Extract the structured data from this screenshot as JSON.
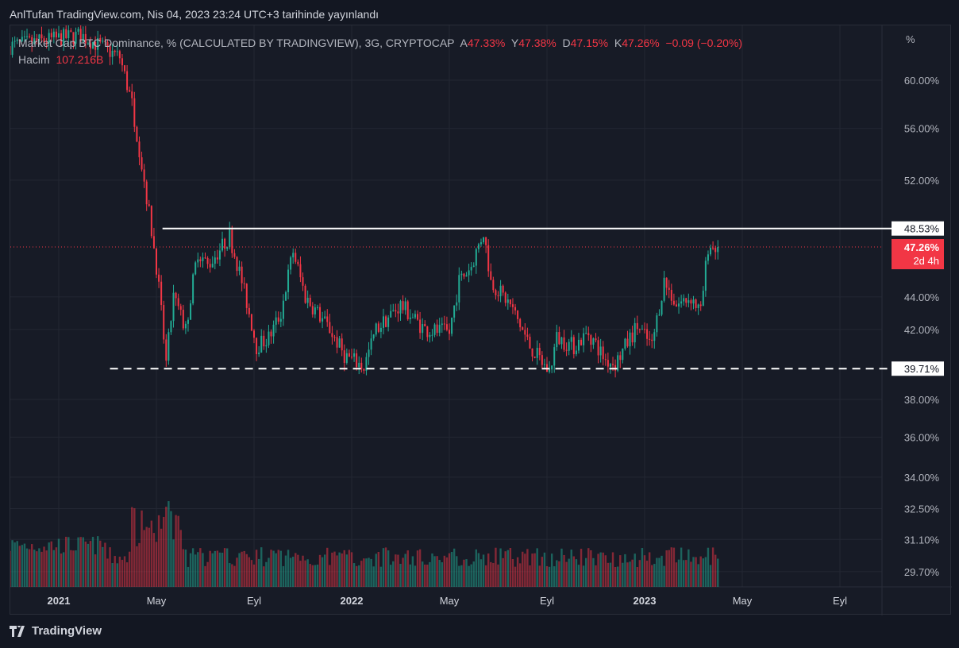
{
  "header": {
    "title": "AnlTufan TradingView.com, Nis 04, 2023 23:24 UTC+3 tarihinde yayınlandı"
  },
  "legend": {
    "symbol": "Market Cap BTC Dominance, % (CALCULATED BY TRADINGVIEW), 3G, CRYPTOCAP",
    "open_label": "A",
    "open": "47.33%",
    "high_label": "Y",
    "high": "47.38%",
    "low_label": "D",
    "low": "47.15%",
    "close_label": "K",
    "close": "47.26%",
    "change": "−0.09 (−0.20%)",
    "volume_label": "Hacim",
    "volume": "107.216B"
  },
  "price_axis": {
    "unit": "%",
    "current_price": "47.26%",
    "countdown": "2d 4h",
    "resistance_label": "48.53%",
    "support_label": "39.71%"
  },
  "footer": {
    "brand": "TradingView"
  },
  "colors": {
    "up": "#22ab94",
    "down": "#f23645",
    "background": "#171b26",
    "grid": "#232733"
  },
  "chart_data": {
    "type": "candlestick",
    "title": "Market Cap BTC Dominance, %",
    "ylabel": "%",
    "y_scale": "log",
    "ylim": [
      29.0,
      64.0
    ],
    "y_ticks": [
      "60.00%",
      "56.00%",
      "52.00%",
      "44.00%",
      "42.00%",
      "38.00%",
      "36.00%",
      "34.00%",
      "32.50%",
      "31.10%",
      "29.70%"
    ],
    "y_tick_values": [
      60,
      56,
      52,
      44,
      42,
      38,
      36,
      34,
      32.5,
      31.1,
      29.7
    ],
    "x_ticks": [
      {
        "label": "2021",
        "month": 0
      },
      {
        "label": "May",
        "month": 4
      },
      {
        "label": "Eyl",
        "month": 8
      },
      {
        "label": "2022",
        "month": 12
      },
      {
        "label": "May",
        "month": 16
      },
      {
        "label": "Eyl",
        "month": 20
      },
      {
        "label": "2023",
        "month": 24
      },
      {
        "label": "May",
        "month": 28
      },
      {
        "label": "Eyl",
        "month": 32
      }
    ],
    "horizontal_lines": [
      {
        "value": 48.53,
        "style": "solid",
        "label": "48.53%"
      },
      {
        "value": 39.71,
        "style": "dashed",
        "label": "39.71%"
      }
    ],
    "last_close": 47.26,
    "keypoints_month_value": [
      [
        -2,
        63
      ],
      [
        0.9,
        64
      ],
      [
        2.5,
        62
      ],
      [
        3,
        58
      ],
      [
        3.5,
        52
      ],
      [
        4,
        46
      ],
      [
        4.4,
        40
      ],
      [
        4.7,
        44
      ],
      [
        5.2,
        42
      ],
      [
        5.7,
        47
      ],
      [
        6.1,
        46
      ],
      [
        7,
        48
      ],
      [
        7.5,
        45
      ],
      [
        8.1,
        41
      ],
      [
        8.6,
        41.5
      ],
      [
        9.1,
        43
      ],
      [
        9.6,
        47
      ],
      [
        10.1,
        44
      ],
      [
        11.1,
        42
      ],
      [
        11.7,
        40.5
      ],
      [
        12.5,
        39.8
      ],
      [
        13,
        42
      ],
      [
        14,
        43.5
      ],
      [
        15,
        42
      ],
      [
        16,
        41.8
      ],
      [
        16.4,
        45
      ],
      [
        16.9,
        46
      ],
      [
        17.4,
        48.3
      ],
      [
        17.7,
        45
      ],
      [
        18.5,
        43.5
      ],
      [
        19.3,
        41
      ],
      [
        20.1,
        39.5
      ],
      [
        20.4,
        41.5
      ],
      [
        21.1,
        41
      ],
      [
        21.7,
        41.8
      ],
      [
        22.4,
        40.2
      ],
      [
        22.8,
        40
      ],
      [
        23.7,
        42.2
      ],
      [
        24.3,
        41
      ],
      [
        24.8,
        45
      ],
      [
        25.3,
        43.5
      ],
      [
        25.9,
        44
      ],
      [
        26.3,
        43
      ],
      [
        26.6,
        47.3
      ],
      [
        27,
        47.26
      ]
    ]
  }
}
